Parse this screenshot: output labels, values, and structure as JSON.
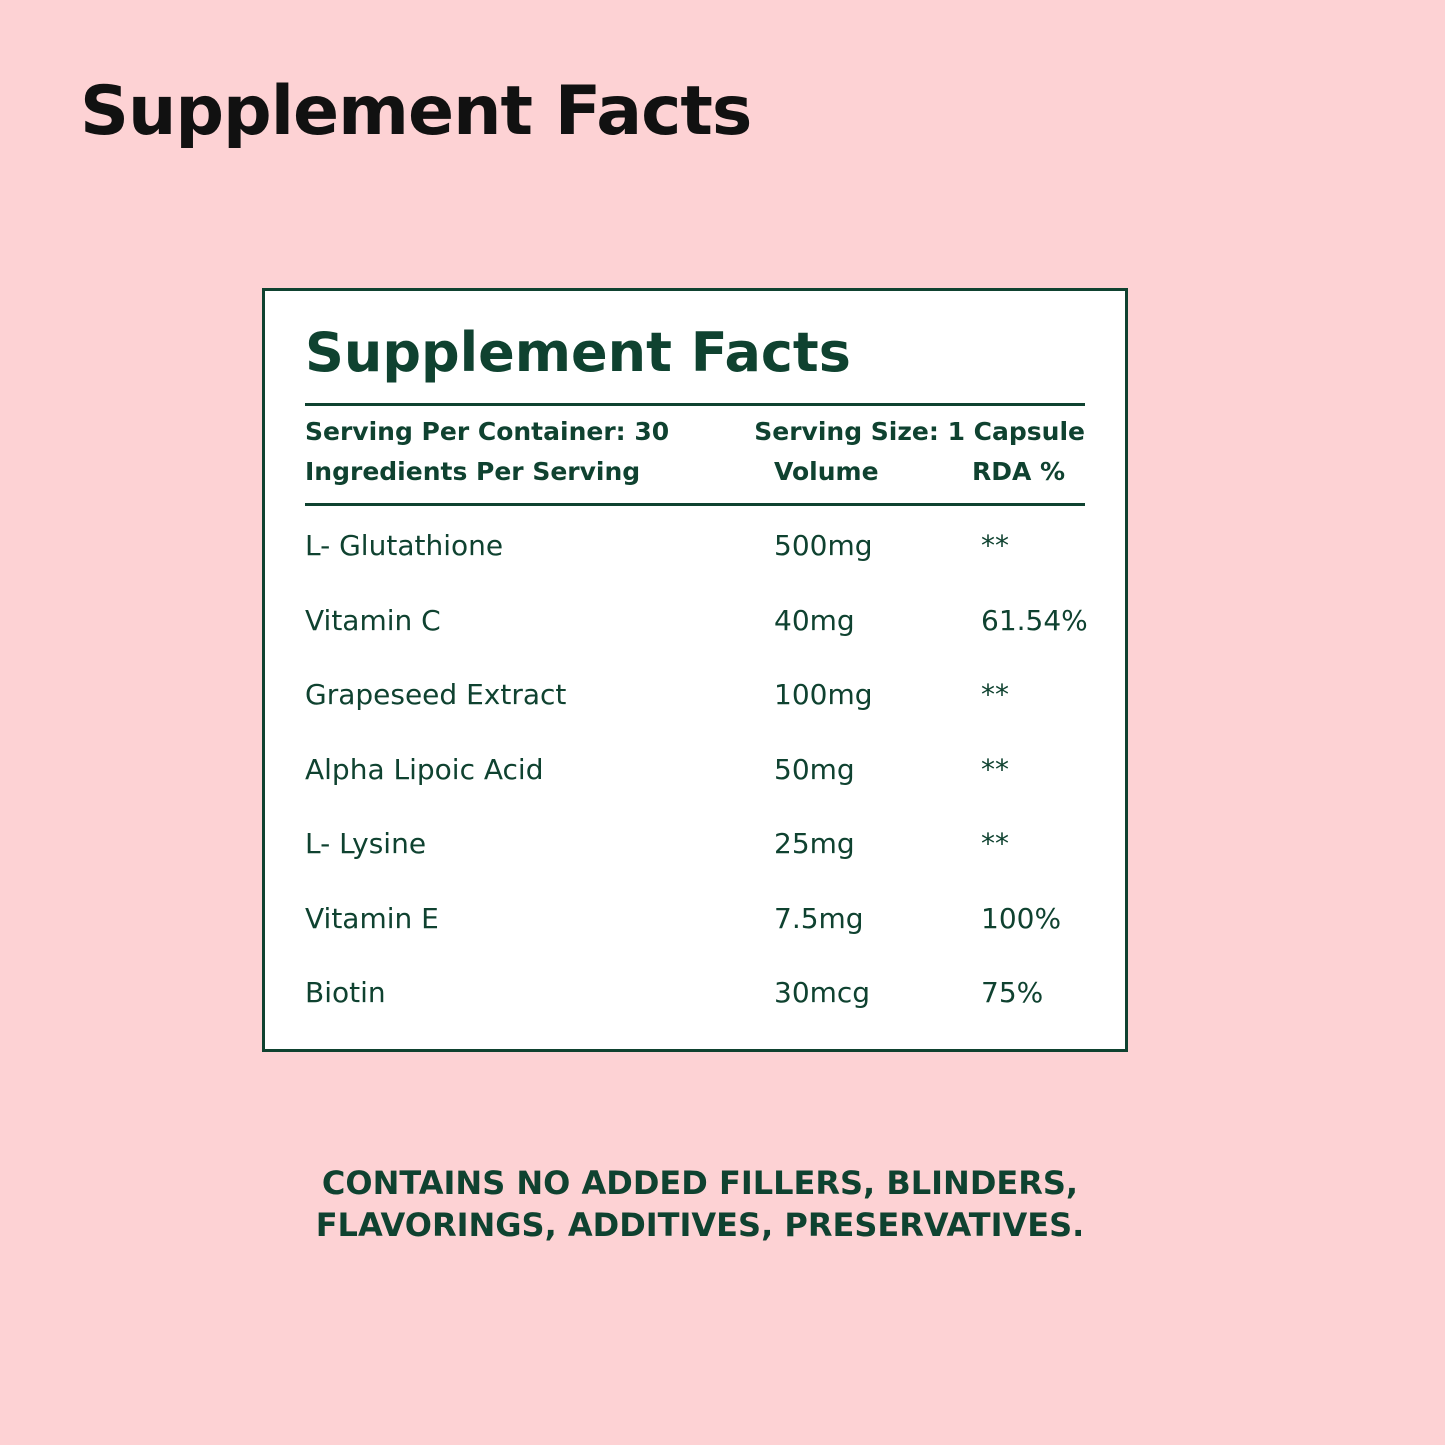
{
  "header": {
    "title": "Supplement Facts"
  },
  "label": {
    "title": "Supplement Facts",
    "serving_per_container": "Serving Per Container: 30",
    "serving_size": "Serving Size: 1 Capsule",
    "columns": [
      "Ingredients Per Serving",
      "Volume",
      "RDA %"
    ],
    "rows": [
      [
        "L- Glutathione",
        "500mg",
        "**"
      ],
      [
        "Vitamin C",
        "40mg",
        "61.54%"
      ],
      [
        "Grapeseed Extract",
        "100mg",
        "**"
      ],
      [
        "Alpha Lipoic Acid",
        "50mg",
        "**"
      ],
      [
        "L- Lysine",
        "25mg",
        "**"
      ],
      [
        "Vitamin E",
        "7.5mg",
        "100%"
      ],
      [
        "Biotin",
        "30mcg",
        "75%"
      ]
    ]
  },
  "footer": {
    "lines": [
      "CONTAINS NO ADDED FILLERS, BLINDERS,",
      "FLAVORINGS, ADDITIVES, PRESERVATIVES."
    ]
  }
}
